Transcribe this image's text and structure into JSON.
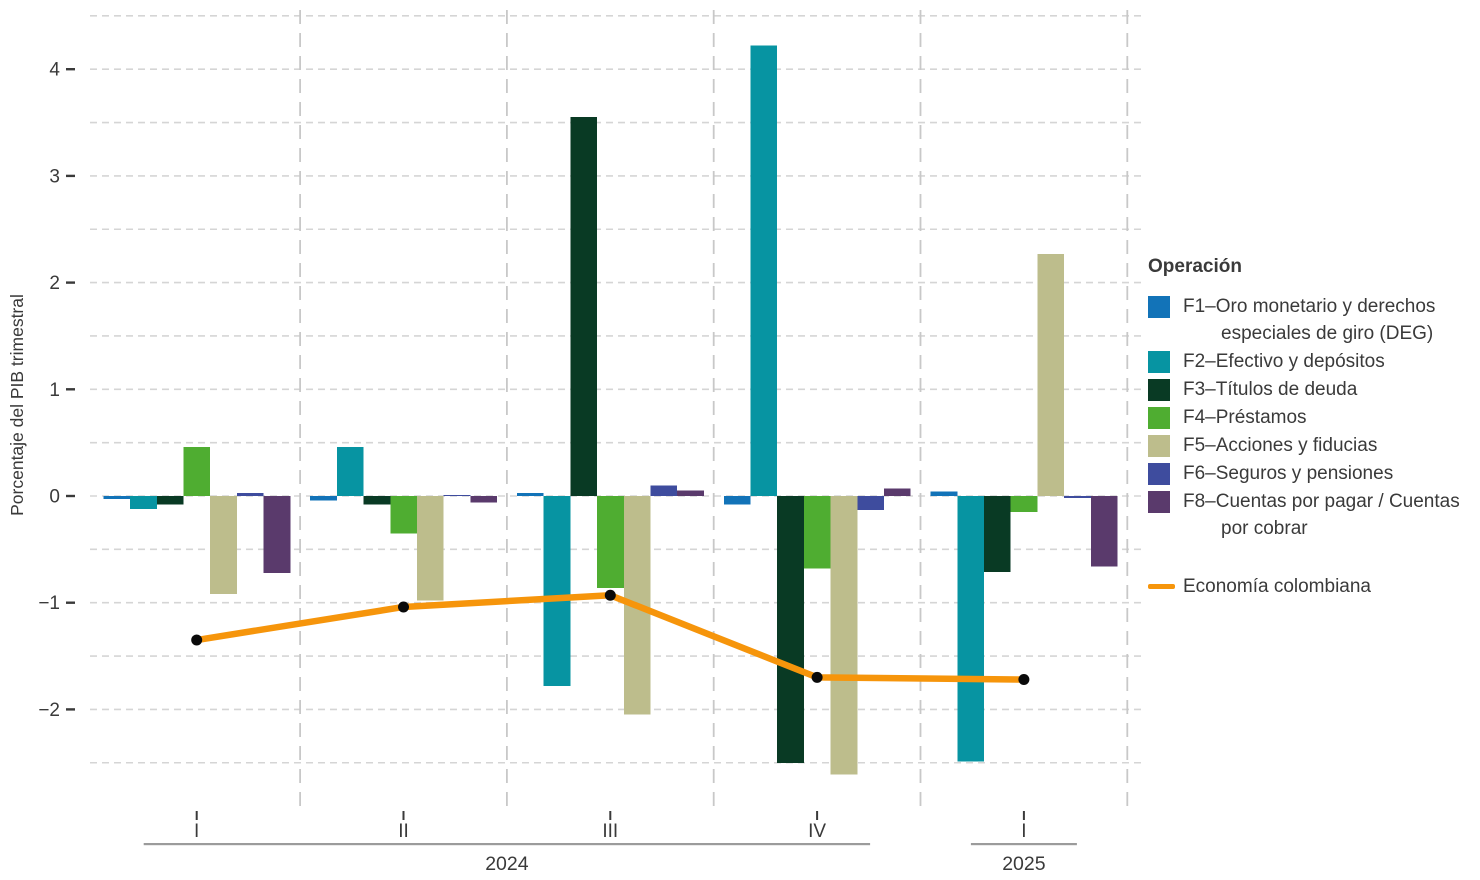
{
  "chart_data": {
    "type": "bar",
    "title": "",
    "ylabel": "Porcentaje del PIB trimestral",
    "xlabel": "",
    "legend_title": "Operación",
    "categories": [
      "I",
      "II",
      "III",
      "IV",
      "I"
    ],
    "year_groups": [
      {
        "label": "2024",
        "from": 0,
        "to": 3
      },
      {
        "label": "2025",
        "from": 4,
        "to": 4
      }
    ],
    "ylim": [
      -2.95,
      4.56
    ],
    "grid": true,
    "grid_step": 0.5,
    "grid_range": [
      -2.5,
      4.5
    ],
    "yticks": [
      {
        "label": "4",
        "value": 4
      },
      {
        "label": "3",
        "value": 3
      },
      {
        "label": "2",
        "value": 2
      },
      {
        "label": "1",
        "value": 1
      },
      {
        "label": "0",
        "value": 0
      },
      {
        "label": "−1",
        "value": -1
      },
      {
        "label": "−2",
        "value": -2
      }
    ],
    "series": [
      {
        "id": "F1",
        "name": "F1–Oro monetario y derechos especiales de giro (DEG)",
        "color": "#1273B8",
        "values": [
          -0.03,
          -0.04,
          0.03,
          -0.08,
          0.04
        ]
      },
      {
        "id": "F2",
        "name": "F2–Efectivo y depósitos",
        "color": "#0794A2",
        "values": [
          -0.12,
          0.46,
          -1.78,
          4.22,
          -2.49
        ]
      },
      {
        "id": "F3",
        "name": "F3–Títulos de deuda",
        "color": "#093A24",
        "values": [
          -0.08,
          -0.08,
          3.55,
          -2.5,
          -0.71
        ]
      },
      {
        "id": "F4",
        "name": "F4–Préstamos",
        "color": "#4FAD31",
        "values": [
          0.46,
          -0.35,
          -0.86,
          -0.68,
          -0.15
        ]
      },
      {
        "id": "F5",
        "name": "F5–Acciones y fiducias",
        "color": "#BDBD8C",
        "values": [
          -0.92,
          -0.98,
          -2.05,
          -2.61,
          2.27
        ]
      },
      {
        "id": "F6",
        "name": "F6–Seguros y pensiones",
        "color": "#3E4C9E",
        "values": [
          0.03,
          0.01,
          0.1,
          -0.13,
          -0.02
        ]
      },
      {
        "id": "F8",
        "name": "F8–Cuentas por pagar / Cuentas por cobrar",
        "color": "#5A3A6C",
        "values": [
          -0.72,
          -0.06,
          0.05,
          0.07,
          -0.66
        ]
      }
    ],
    "line_series": {
      "name": "Economía colombiana",
      "color": "#F6950B",
      "point_color": "#0a0a0a",
      "values": [
        -1.35,
        -1.04,
        -0.93,
        -1.7,
        -1.72
      ]
    },
    "style_colors": {
      "grid": "#D5D5D5",
      "panel_separator": "#C8C8C8",
      "text": "#3A3A3A",
      "axis_bracket": "#9B9B9B"
    }
  }
}
